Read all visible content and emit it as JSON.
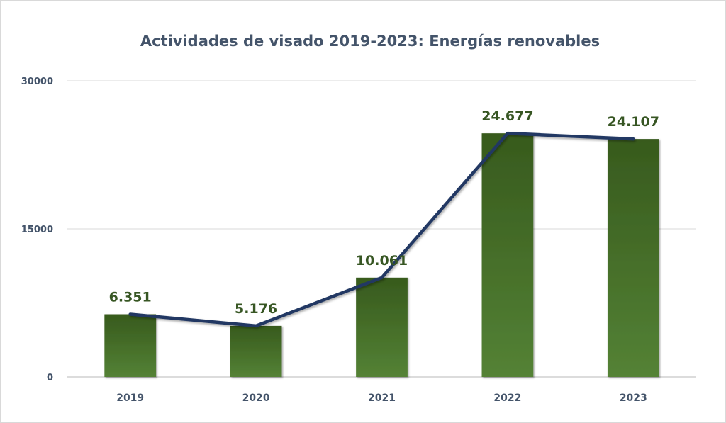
{
  "chart_data": {
    "type": "bar",
    "title": "Actividades de visado 2019-2023: Energías renovables",
    "xlabel": "",
    "ylabel": "",
    "categories": [
      "2019",
      "2020",
      "2021",
      "2022",
      "2023"
    ],
    "series": [
      {
        "name": "Visados (barras)",
        "kind": "bar",
        "values": [
          6351,
          5176,
          10061,
          24677,
          24107
        ],
        "data_labels": [
          "6.351",
          "5.176",
          "10.061",
          "24.677",
          "24.107"
        ],
        "color_top": "#375a1d",
        "color_bottom": "#548235"
      },
      {
        "name": "Tendencia (línea)",
        "kind": "line",
        "values": [
          6351,
          5176,
          10061,
          24677,
          24107
        ],
        "color": "#203864"
      }
    ],
    "ylim": [
      0,
      30000
    ],
    "yticks": [
      0,
      15000,
      30000
    ],
    "ytick_labels": [
      "0",
      "15000",
      "30000"
    ],
    "grid": true,
    "legend": "none",
    "colors": {
      "title": "#44546a",
      "tick_labels": "#44546a",
      "data_labels": "#375623",
      "gridlines": "#d9d9d9"
    }
  }
}
